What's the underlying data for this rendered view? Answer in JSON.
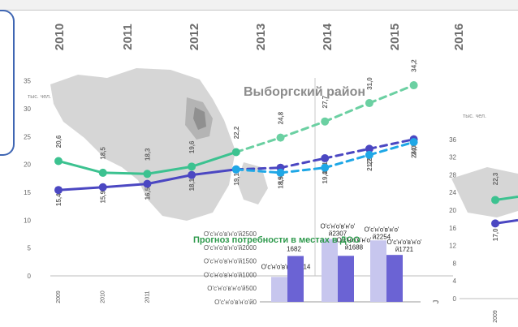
{
  "header": {
    "years": [
      "2010",
      "2011",
      "2012",
      "2013",
      "2014",
      "2015",
      "2016"
    ]
  },
  "colors": {
    "green": "#3cc290",
    "green_light": "#6bd0a2",
    "navy": "#4b47c2",
    "cyan": "#1ea7e6",
    "inset_title": "#2f9a4d",
    "bar_light": "#c7c6ee",
    "bar_dark": "#6b63d4",
    "map": "#cfcfcf"
  },
  "chart_data": [
    {
      "type": "line",
      "title": "Выборгский район",
      "ylabel": "тыс. чел.",
      "ylim": [
        0,
        35
      ],
      "yticks": [
        0,
        5,
        10,
        15,
        20,
        25,
        30,
        35
      ],
      "x": [
        "2009",
        "2010",
        "2011",
        "",
        "",
        "",
        "",
        "",
        ""
      ],
      "series": [
        {
          "values": [
            20.6,
            18.5,
            18.3,
            19.6,
            22.2,
            24.8,
            27.7,
            31.0,
            34.2
          ],
          "labels": [
            "20,6",
            "18,5",
            "18,3",
            "19,6",
            "22,2",
            "24,8",
            "27,7",
            "31,0",
            "34,2"
          ],
          "color": "green",
          "solid_until": 4
        },
        {
          "values": [
            15.4,
            15.9,
            16.5,
            18.1,
            19.1,
            19.4,
            21.1,
            22.8,
            24.5
          ],
          "labels": [
            "15,4",
            "15,9",
            "16,5",
            "18,1",
            "19,1",
            "19,4",
            "21,1",
            "22,8",
            "24,5"
          ],
          "color": "navy",
          "solid_until": 4
        },
        {
          "values": [
            null,
            null,
            null,
            null,
            19.1,
            18.5,
            19.4,
            21.7,
            24.0
          ],
          "labels": [
            "",
            "",
            "",
            "",
            "",
            "18,5",
            "19,4",
            "21,7",
            "24,0"
          ],
          "color": "cyan",
          "solid_until": 0
        }
      ],
      "grid": false,
      "forecast_divider_after": 6
    },
    {
      "type": "bar",
      "title": "Прогноз потребности в местах в ДОО",
      "yticks": [
        "O'c'н'o'в'н'o'й0",
        "O'c'н'o'в'н'o'й500",
        "O'c'н'o'в'н'o'й1000",
        "O'c'н'o'в'н'o'й1500",
        "O'c'н'o'в'н'o'й2000",
        "O'c'н'o'в'н'o'й2500"
      ],
      "ylim": [
        0,
        2500
      ],
      "groups": 3,
      "series": [
        {
          "values": [
            914,
            2307,
            2254
          ],
          "labels": [
            "O'c'н'o'в'н'o'й914",
            "O'c'н'o'в'н'o' й2307",
            "O'c'н'o'в'н'o' й2254"
          ],
          "color": "bar_light"
        },
        {
          "values": [
            1682,
            1688,
            1721
          ],
          "labels": [
            "1682",
            "O'c'н'o'в'н'o' й1688",
            "O'c'н'o'в'н'o' й1721"
          ],
          "color": "bar_dark"
        }
      ]
    },
    {
      "type": "line",
      "ylabel": "тыс. чел.",
      "ylim": [
        0,
        36
      ],
      "yticks": [
        0,
        4,
        8,
        12,
        16,
        20,
        24,
        28,
        32,
        36
      ],
      "x": [
        "2009"
      ],
      "series": [
        {
          "values": [
            22.3
          ],
          "labels": [
            "22,3"
          ],
          "color": "green"
        },
        {
          "values": [
            17.0
          ],
          "labels": [
            "17,0"
          ],
          "color": "navy"
        }
      ],
      "bottom_label": "J"
    }
  ]
}
